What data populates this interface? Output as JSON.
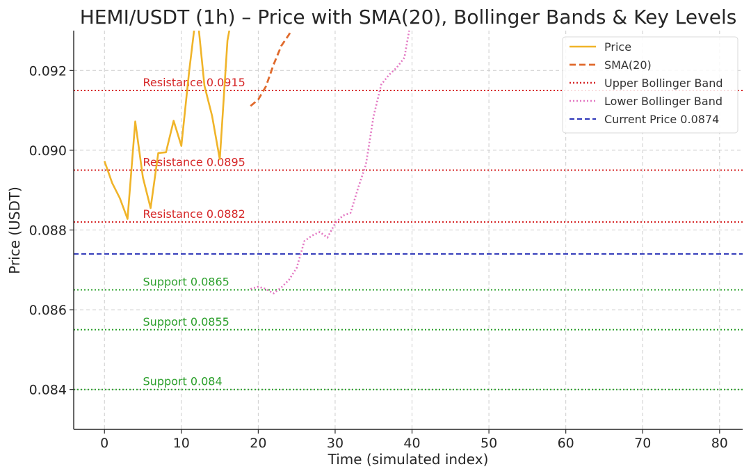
{
  "chart_data": {
    "type": "line",
    "title": "HEMI/USDT (1h) – Price with SMA(20), Bollinger Bands & Key Levels",
    "xlabel": "Time (simulated index)",
    "ylabel": "Price (USDT)",
    "xlim": [
      -4,
      83
    ],
    "ylim": [
      0.083,
      0.093
    ],
    "x_ticks": [
      0,
      10,
      20,
      30,
      40,
      50,
      60,
      70,
      80
    ],
    "y_ticks": [
      0.084,
      0.086,
      0.088,
      0.09,
      0.092
    ],
    "y_tick_labels": [
      "0.084",
      "0.086",
      "0.088",
      "0.090",
      "0.092"
    ],
    "grid": true,
    "legend_position": "top-right",
    "series": [
      {
        "name": "Price",
        "color": "#F0B429",
        "style": "solid",
        "x": [
          0,
          1,
          2,
          3,
          4,
          5,
          6,
          7,
          8,
          9,
          10,
          11,
          12,
          13,
          14,
          15,
          16,
          17
        ],
        "y": [
          0.08973,
          0.08918,
          0.0888,
          0.08828,
          0.09072,
          0.08932,
          0.08855,
          0.08993,
          0.08995,
          0.09074,
          0.09011,
          0.09196,
          0.09355,
          0.09162,
          0.09086,
          0.08977,
          0.09275,
          0.0938
        ]
      },
      {
        "name": "SMA(20)",
        "color": "#E06A2C",
        "style": "dashed",
        "x": [
          19,
          20,
          21,
          22,
          23,
          24,
          25
        ],
        "y": [
          0.09111,
          0.09127,
          0.0916,
          0.09215,
          0.09262,
          0.0929,
          0.09325
        ]
      },
      {
        "name": "Upper Bollinger Band",
        "color": "#D62728",
        "style": "dotted",
        "x": [],
        "y": []
      },
      {
        "name": "Lower Bollinger Band",
        "color": "#E377C2",
        "style": "dotted",
        "x": [
          19,
          20,
          21,
          22,
          23,
          24,
          25,
          26,
          27,
          28,
          29,
          30,
          31,
          32,
          33,
          34,
          35,
          36,
          37,
          38,
          39,
          40
        ],
        "y": [
          0.08652,
          0.08658,
          0.08652,
          0.08641,
          0.08656,
          0.08675,
          0.08705,
          0.08772,
          0.08786,
          0.08795,
          0.08781,
          0.08817,
          0.08836,
          0.08843,
          0.08906,
          0.08964,
          0.09085,
          0.09165,
          0.09189,
          0.09207,
          0.09232,
          0.0934
        ]
      }
    ],
    "current_price": {
      "label": "Current Price 0.0874",
      "value": 0.0874,
      "color": "#2C35B8"
    },
    "levels": [
      {
        "label": "Resistance 0.0915",
        "value": 0.0915,
        "kind": "resistance",
        "color": "#D62728",
        "label_x": 5
      },
      {
        "label": "Resistance 0.0895",
        "value": 0.0895,
        "kind": "resistance",
        "color": "#D62728",
        "label_x": 5
      },
      {
        "label": "Resistance 0.0882",
        "value": 0.0882,
        "kind": "resistance",
        "color": "#D62728",
        "label_x": 5
      },
      {
        "label": "Support 0.0865",
        "value": 0.0865,
        "kind": "support",
        "color": "#2CA02C",
        "label_x": 5
      },
      {
        "label": "Support 0.0855",
        "value": 0.0855,
        "kind": "support",
        "color": "#2CA02C",
        "label_x": 5
      },
      {
        "label": "Support 0.084",
        "value": 0.084,
        "kind": "support",
        "color": "#2CA02C",
        "label_x": 5
      }
    ]
  }
}
